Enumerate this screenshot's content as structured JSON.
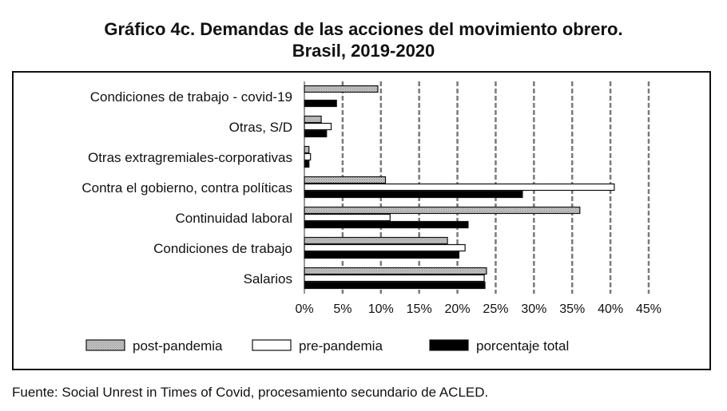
{
  "chart_data": {
    "type": "bar",
    "orientation": "horizontal",
    "title": "Gráfico 4c. Demandas de las acciones del movimiento obrero.",
    "subtitle": "Brasil, 2019-2020",
    "categories": [
      "Condiciones de trabajo - covid-19",
      "Otras, S/D",
      "Otras extragremiales-corporativas",
      "Contra el gobierno, contra políticas",
      "Continuidad laboral",
      "Condiciones de trabajo",
      "Salarios"
    ],
    "series": [
      {
        "name": "post-pandemia",
        "color": "#b4b4b4",
        "values": [
          9.6,
          2.2,
          0.6,
          10.6,
          36.0,
          18.7,
          23.8
        ]
      },
      {
        "name": "pre-pandemia",
        "color": "#ffffff",
        "values": [
          0.0,
          3.5,
          0.8,
          40.5,
          11.2,
          21.0,
          23.5
        ]
      },
      {
        "name": "porcentaje total",
        "color": "#000000",
        "values": [
          4.2,
          2.9,
          0.6,
          28.5,
          21.4,
          20.2,
          23.6
        ]
      }
    ],
    "x_ticks": [
      "0%",
      "5%",
      "10%",
      "15%",
      "20%",
      "25%",
      "30%",
      "35%",
      "40%",
      "45%"
    ],
    "xlim": [
      0,
      45
    ],
    "grid": "vertical dashed",
    "legend_position": "bottom"
  },
  "source": "Fuente: Social Unrest in Times of Covid, procesamiento secundario de ACLED."
}
